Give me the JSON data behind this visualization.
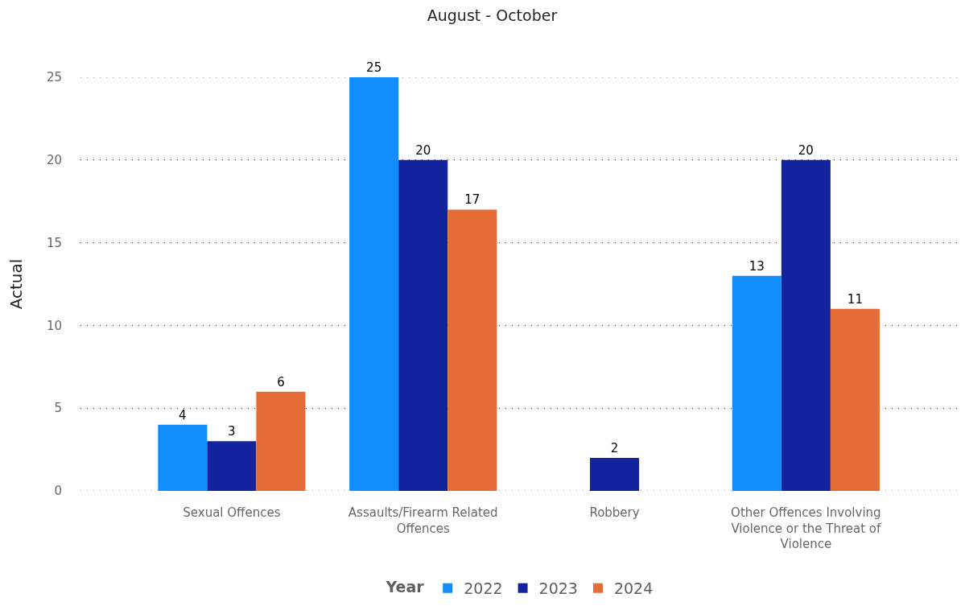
{
  "chart_data": {
    "type": "bar",
    "title": "August - October",
    "ylabel": "Actual",
    "legend_title": "Year",
    "categories": [
      "Sexual Offences",
      "Assaults/Firearm Related Offences",
      "Robbery",
      "Other Offences Involving Violence or the Threat of Violence"
    ],
    "series": [
      {
        "name": "2022",
        "color": "#118dff",
        "values": [
          4,
          25,
          null,
          13
        ]
      },
      {
        "name": "2023",
        "color": "#12239e",
        "values": [
          3,
          20,
          2,
          20
        ]
      },
      {
        "name": "2024",
        "color": "#e66c37",
        "values": [
          6,
          17,
          null,
          11
        ]
      }
    ],
    "ylim": [
      0,
      25
    ],
    "yticks": [
      0,
      5,
      10,
      15,
      20,
      25
    ],
    "grid": "y",
    "legend": "bottom",
    "data_labels": true
  }
}
